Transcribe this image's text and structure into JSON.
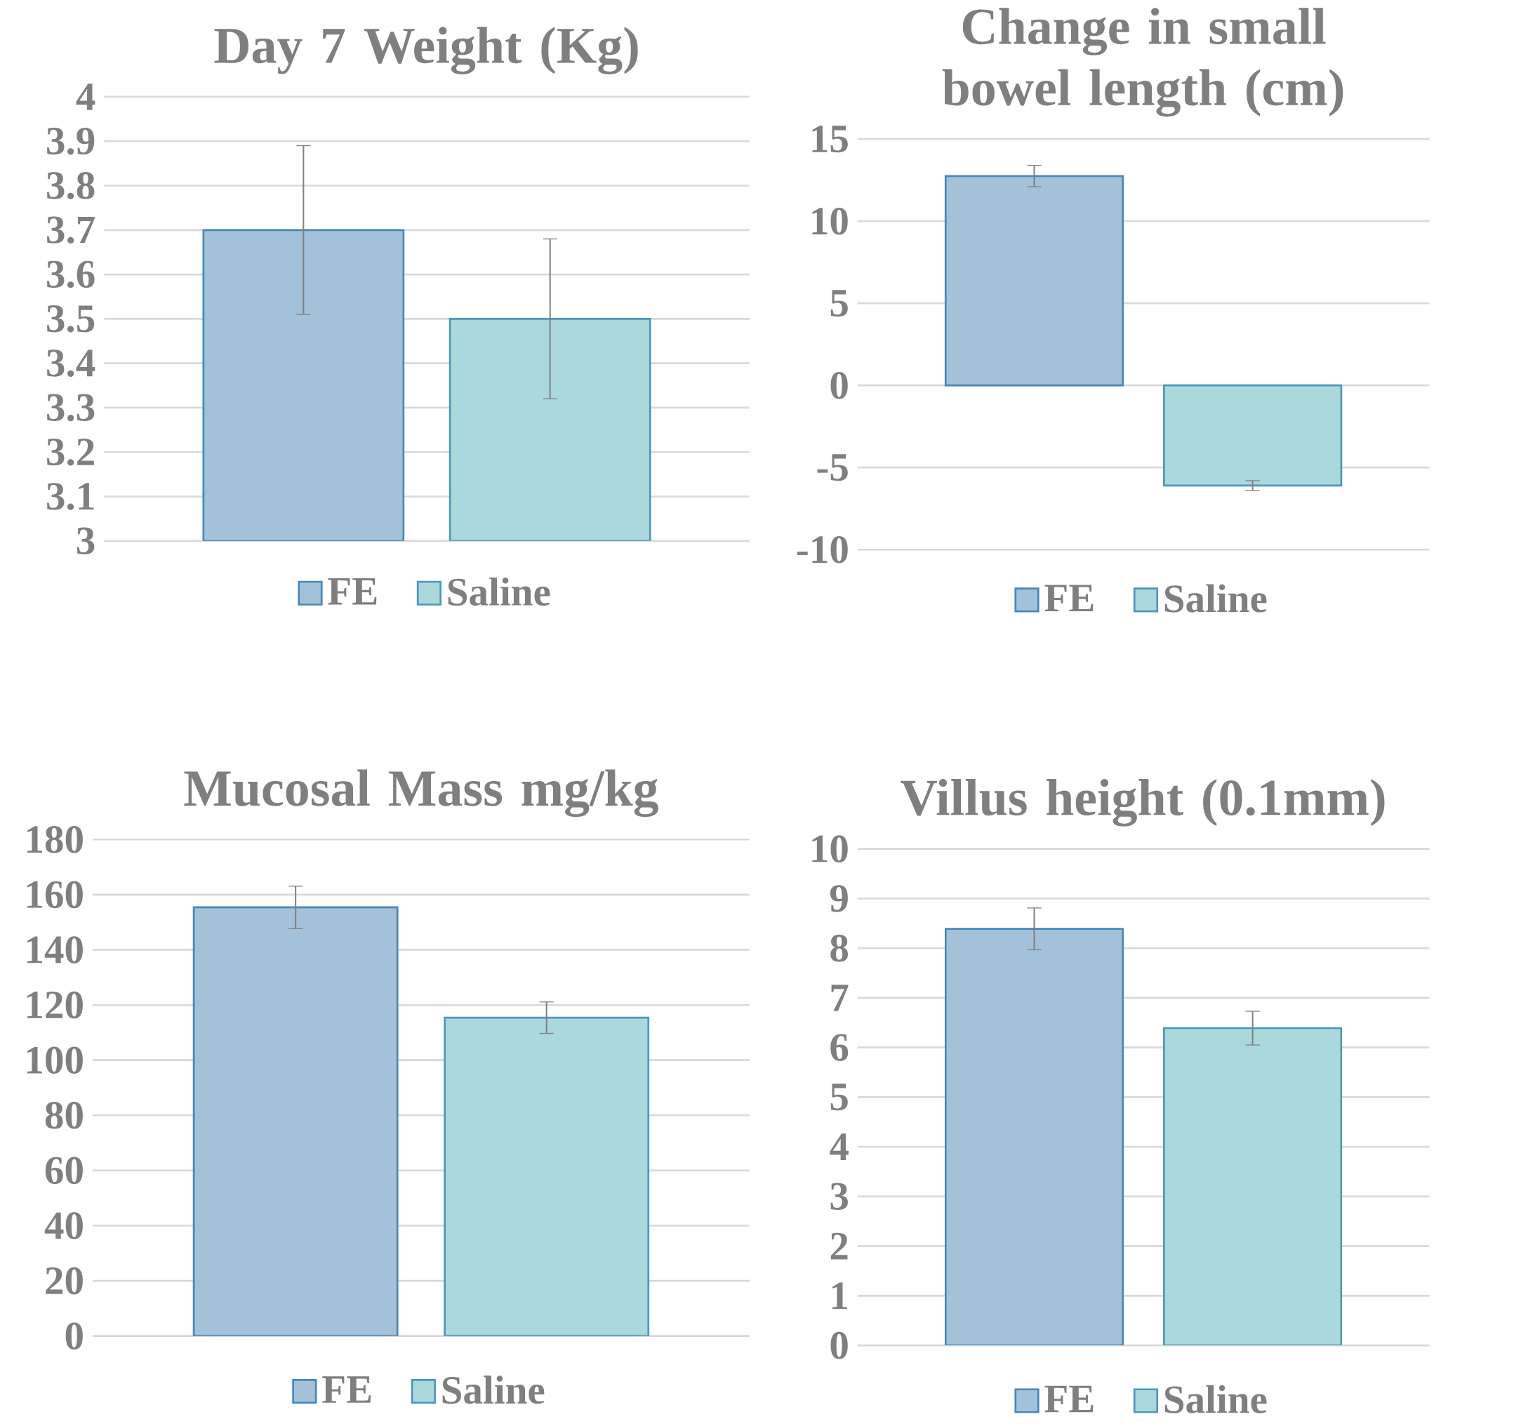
{
  "chart_data": [
    {
      "type": "bar",
      "title": "Day 7 Weight (Kg)",
      "categories": [
        null
      ],
      "series": [
        {
          "name": "FE",
          "color": "#a3c1d9",
          "values": [
            3.7
          ],
          "errors": [
            0.19
          ]
        },
        {
          "name": "Saline",
          "color": "#aad8dc",
          "values": [
            3.5
          ],
          "errors": [
            0.18
          ]
        }
      ],
      "ylim": [
        3,
        4
      ],
      "yticks": [
        3,
        3.1,
        3.2,
        3.3,
        3.4,
        3.5,
        3.6,
        3.7,
        3.8,
        3.9,
        4
      ],
      "grid": "y",
      "legend": "bottom"
    },
    {
      "type": "bar",
      "title": "Change in small bowel length (cm)",
      "categories": [
        null
      ],
      "series": [
        {
          "name": "FE",
          "color": "#a3c1d9",
          "values": [
            12.75
          ],
          "errors": [
            0.65
          ]
        },
        {
          "name": "Saline",
          "color": "#aad8dc",
          "values": [
            -6.1
          ],
          "errors": [
            0.3
          ]
        }
      ],
      "ylim": [
        -10,
        15
      ],
      "yticks": [
        -10,
        -5,
        0,
        5,
        10,
        15
      ],
      "grid": "y",
      "legend": "bottom"
    },
    {
      "type": "bar",
      "title": "Mucosal Mass mg/kg",
      "categories": [
        null
      ],
      "series": [
        {
          "name": "FE",
          "color": "#a3c1d9",
          "values": [
            155.4
          ],
          "errors": [
            7.7
          ]
        },
        {
          "name": "Saline",
          "color": "#aad8dc",
          "values": [
            115.4
          ],
          "errors": [
            5.7
          ]
        }
      ],
      "ylim": [
        0,
        180
      ],
      "yticks": [
        0,
        20,
        40,
        60,
        80,
        100,
        120,
        140,
        160,
        180
      ],
      "grid": "y",
      "legend": "bottom"
    },
    {
      "type": "bar",
      "title": "Villus height (0.1mm)",
      "categories": [
        null
      ],
      "series": [
        {
          "name": "FE",
          "color": "#a3c1d9",
          "values": [
            8.39
          ],
          "errors": [
            0.42
          ]
        },
        {
          "name": "Saline",
          "color": "#aad8dc",
          "values": [
            6.39
          ],
          "errors": [
            0.34
          ]
        }
      ],
      "ylim": [
        0,
        10
      ],
      "yticks": [
        0,
        1,
        2,
        3,
        4,
        5,
        6,
        7,
        8,
        9,
        10
      ],
      "grid": "y",
      "legend": "bottom"
    }
  ]
}
